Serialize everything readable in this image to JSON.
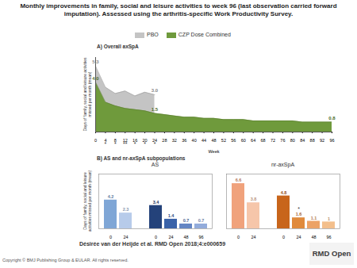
{
  "title": "Monthly improvements in family, social and leisure activities to week 96 (last observation carried forward imputation). Assessed using the arthritis-specific Work Productivity Survey.",
  "chart_data": [
    {
      "type": "area",
      "title": "A) Overall axSpA",
      "y_label": "Days of family, social and leisure activities missed per month (mean)",
      "x_label": "Week",
      "legend": "top",
      "tick_labels": "x",
      "xlim": [
        0,
        96
      ],
      "xticks": [
        0,
        4,
        8,
        12,
        16,
        20,
        24,
        28,
        32,
        36,
        40,
        44,
        48,
        52,
        56,
        60,
        64,
        68,
        72,
        76,
        80,
        84,
        88,
        92,
        96
      ],
      "ylim": [
        0,
        6
      ],
      "series": [
        {
          "name": "PBO",
          "color": "#c4c4c4",
          "x": [
            0,
            4,
            8,
            12,
            16,
            20,
            24
          ],
          "values": [
            5.3,
            3.6,
            3.1,
            3.3,
            2.9,
            3.2,
            3.0
          ]
        },
        {
          "name": "CZP Dose Combined",
          "color": "#6f9a3c",
          "x": [
            0,
            4,
            8,
            12,
            16,
            20,
            24,
            28,
            32,
            36,
            40,
            44,
            48,
            52,
            56,
            60,
            64,
            68,
            72,
            76,
            80,
            84,
            88,
            92,
            96
          ],
          "values": [
            4.0,
            2.4,
            2.1,
            1.9,
            1.8,
            1.7,
            1.5,
            1.4,
            1.3,
            1.2,
            1.2,
            1.1,
            1.1,
            1.0,
            1.0,
            1.0,
            0.9,
            0.9,
            0.9,
            0.9,
            0.9,
            0.8,
            0.8,
            0.8,
            0.8
          ]
        }
      ],
      "annotations": [
        {
          "series": "PBO",
          "x": 0,
          "text": "5.3"
        },
        {
          "series": "CZP Dose Combined",
          "x": 0,
          "text": "4.0"
        },
        {
          "series": "PBO",
          "x": 24,
          "text": "3.0"
        },
        {
          "series": "CZP Dose Combined",
          "x": 24,
          "text": "1.5"
        },
        {
          "series": "CZP Dose Combined",
          "x": 96,
          "text": "0.8"
        }
      ],
      "significance": [
        {
          "x": 4,
          "text": "*"
        },
        {
          "x": 8,
          "text": "*"
        },
        {
          "x": 12,
          "text": "**"
        },
        {
          "x": 16,
          "text": "*"
        },
        {
          "x": 20,
          "text": "*"
        },
        {
          "x": 24,
          "text": "*"
        }
      ]
    },
    {
      "type": "bar",
      "title": "B) AS and nr-axSpA subpopulations",
      "y_label": "Days of family, social and leisure activities missed per month (mean)",
      "tick_labels": "x",
      "data_labels": true,
      "ylim": [
        0,
        8
      ],
      "groups": [
        {
          "name": "AS",
          "categories": [
            "0",
            "24",
            "0",
            "24",
            "48",
            "96"
          ],
          "values": [
            4.2,
            2.3,
            3.4,
            1.4,
            0.7,
            0.7
          ],
          "colors": [
            "#7fa6d6",
            "#b7cbea",
            "#24427a",
            "#3a62a8",
            "#6586c4",
            "#93acdb"
          ],
          "annotations": []
        },
        {
          "name": "nr-axSpA",
          "categories": [
            "0",
            "24",
            "0",
            "24",
            "48",
            "96"
          ],
          "values": [
            6.6,
            3.8,
            4.8,
            1.6,
            1.1,
            1
          ],
          "colors": [
            "#f0a27c",
            "#f6c6aa",
            "#c8651b",
            "#e08a3c",
            "#eca266",
            "#f3bf8c"
          ],
          "annotations": [
            {
              "index": 3,
              "text": "*"
            }
          ]
        }
      ]
    }
  ],
  "footer": {
    "citation": "Désirée van der Heijde et al. RMD Open 2018;4:e000659",
    "copyright": "Copyright © BMJ Publishing Group & EULAR. All rights reserved.",
    "logo": "RMD Open"
  }
}
